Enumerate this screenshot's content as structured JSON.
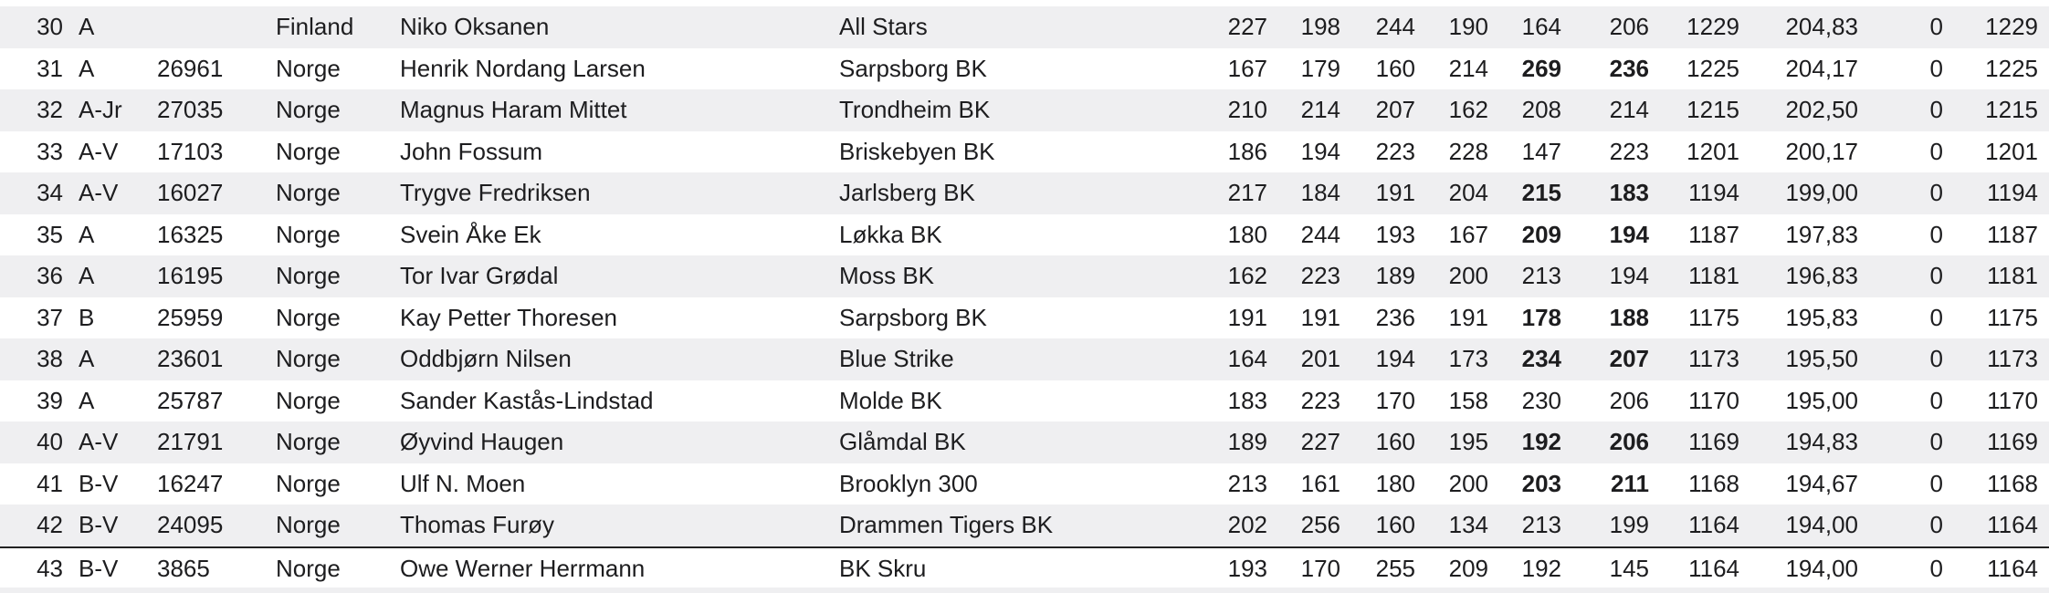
{
  "table": {
    "rows": [
      {
        "rank": 30,
        "class": "A",
        "license": null,
        "country": "Finland",
        "name": "Niko Oksanen",
        "club": "All Stars",
        "games": [
          227,
          198,
          244,
          190,
          164,
          206
        ],
        "total": 1229,
        "average": "204,83",
        "handicap": 0,
        "sum": 1229,
        "bold": false
      },
      {
        "rank": 31,
        "class": "A",
        "license": 26961,
        "country": "Norge",
        "name": "Henrik Nordang Larsen",
        "club": "Sarpsborg BK",
        "games": [
          167,
          179,
          160,
          214,
          269,
          236
        ],
        "total": 1225,
        "average": "204,17",
        "handicap": 0,
        "sum": 1225,
        "bold": true
      },
      {
        "rank": 32,
        "class": "A-Jr",
        "license": 27035,
        "country": "Norge",
        "name": "Magnus Haram Mittet",
        "club": "Trondheim BK",
        "games": [
          210,
          214,
          207,
          162,
          208,
          214
        ],
        "total": 1215,
        "average": "202,50",
        "handicap": 0,
        "sum": 1215,
        "bold": false
      },
      {
        "rank": 33,
        "class": "A-V",
        "license": 17103,
        "country": "Norge",
        "name": "John Fossum",
        "club": "Briskebyen BK",
        "games": [
          186,
          194,
          223,
          228,
          147,
          223
        ],
        "total": 1201,
        "average": "200,17",
        "handicap": 0,
        "sum": 1201,
        "bold": false
      },
      {
        "rank": 34,
        "class": "A-V",
        "license": 16027,
        "country": "Norge",
        "name": "Trygve Fredriksen",
        "club": "Jarlsberg BK",
        "games": [
          217,
          184,
          191,
          204,
          215,
          183
        ],
        "total": 1194,
        "average": "199,00",
        "handicap": 0,
        "sum": 1194,
        "bold": true
      },
      {
        "rank": 35,
        "class": "A",
        "license": 16325,
        "country": "Norge",
        "name": "Svein Åke Ek",
        "club": "Løkka BK",
        "games": [
          180,
          244,
          193,
          167,
          209,
          194
        ],
        "total": 1187,
        "average": "197,83",
        "handicap": 0,
        "sum": 1187,
        "bold": true
      },
      {
        "rank": 36,
        "class": "A",
        "license": 16195,
        "country": "Norge",
        "name": "Tor Ivar Grødal",
        "club": "Moss BK",
        "games": [
          162,
          223,
          189,
          200,
          213,
          194
        ],
        "total": 1181,
        "average": "196,83",
        "handicap": 0,
        "sum": 1181,
        "bold": false
      },
      {
        "rank": 37,
        "class": "B",
        "license": 25959,
        "country": "Norge",
        "name": "Kay Petter Thoresen",
        "club": "Sarpsborg BK",
        "games": [
          191,
          191,
          236,
          191,
          178,
          188
        ],
        "total": 1175,
        "average": "195,83",
        "handicap": 0,
        "sum": 1175,
        "bold": true
      },
      {
        "rank": 38,
        "class": "A",
        "license": 23601,
        "country": "Norge",
        "name": "Oddbjørn Nilsen",
        "club": "Blue Strike",
        "games": [
          164,
          201,
          194,
          173,
          234,
          207
        ],
        "total": 1173,
        "average": "195,50",
        "handicap": 0,
        "sum": 1173,
        "bold": true
      },
      {
        "rank": 39,
        "class": "A",
        "license": 25787,
        "country": "Norge",
        "name": "Sander Kastås-Lindstad",
        "club": "Molde BK",
        "games": [
          183,
          223,
          170,
          158,
          230,
          206
        ],
        "total": 1170,
        "average": "195,00",
        "handicap": 0,
        "sum": 1170,
        "bold": false
      },
      {
        "rank": 40,
        "class": "A-V",
        "license": 21791,
        "country": "Norge",
        "name": "Øyvind Haugen",
        "club": "Glåmdal BK",
        "games": [
          189,
          227,
          160,
          195,
          192,
          206
        ],
        "total": 1169,
        "average": "194,83",
        "handicap": 0,
        "sum": 1169,
        "bold": true
      },
      {
        "rank": 41,
        "class": "B-V",
        "license": 16247,
        "country": "Norge",
        "name": "Ulf N. Moen",
        "club": "Brooklyn 300",
        "games": [
          213,
          161,
          180,
          200,
          203,
          211
        ],
        "total": 1168,
        "average": "194,67",
        "handicap": 0,
        "sum": 1168,
        "bold": true
      },
      {
        "rank": 42,
        "class": "B-V",
        "license": 24095,
        "country": "Norge",
        "name": "Thomas Furøy",
        "club": "Drammen Tigers BK",
        "games": [
          202,
          256,
          160,
          134,
          213,
          199
        ],
        "total": 1164,
        "average": "194,00",
        "handicap": 0,
        "sum": 1164,
        "bold": false
      },
      {
        "rank": 43,
        "class": "B-V",
        "license": 3865,
        "country": "Norge",
        "name": "Owe Werner Herrmann",
        "club": "BK Skru",
        "games": [
          193,
          170,
          255,
          209,
          192,
          145
        ],
        "total": 1164,
        "average": "194,00",
        "handicap": 0,
        "sum": 1164,
        "bold": false
      }
    ]
  }
}
